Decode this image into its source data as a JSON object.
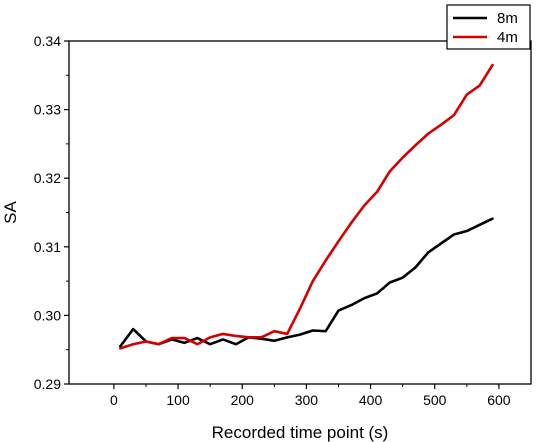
{
  "chart_data": {
    "type": "line",
    "title": "",
    "xlabel": "Recorded time point (s)",
    "ylabel": "SA",
    "xlim": [
      -70,
      650
    ],
    "ylim": [
      0.29,
      0.34
    ],
    "xticks": [
      0,
      100,
      200,
      300,
      400,
      500,
      600
    ],
    "xtick_labels": [
      "0",
      "100",
      "200",
      "300",
      "400",
      "500",
      "600"
    ],
    "yticks": [
      0.29,
      0.3,
      0.31,
      0.32,
      0.33,
      0.34
    ],
    "ytick_labels": [
      "0.29",
      "0.30",
      "0.31",
      "0.32",
      "0.33",
      "0.34"
    ],
    "grid": false,
    "legend_position": "top-right",
    "series": [
      {
        "name": "8m",
        "color": "#000000",
        "x": [
          10,
          30,
          50,
          70,
          90,
          110,
          130,
          150,
          170,
          190,
          210,
          230,
          250,
          270,
          290,
          310,
          330,
          350,
          370,
          390,
          410,
          430,
          450,
          470,
          490,
          510,
          530,
          550,
          570,
          590
        ],
        "y": [
          0.2955,
          0.298,
          0.2962,
          0.2958,
          0.2965,
          0.296,
          0.2967,
          0.2958,
          0.2965,
          0.2958,
          0.2968,
          0.2966,
          0.2963,
          0.2968,
          0.2972,
          0.2978,
          0.2977,
          0.3007,
          0.3015,
          0.3025,
          0.3032,
          0.3048,
          0.3055,
          0.307,
          0.3092,
          0.3105,
          0.3118,
          0.3123,
          0.3132,
          0.3141
        ]
      },
      {
        "name": "4m",
        "color": "#d40000",
        "x": [
          10,
          30,
          50,
          70,
          90,
          110,
          130,
          150,
          170,
          190,
          210,
          230,
          250,
          270,
          290,
          310,
          330,
          350,
          370,
          390,
          410,
          430,
          450,
          470,
          490,
          510,
          530,
          550,
          570,
          590
        ],
        "y": [
          0.2952,
          0.2958,
          0.2962,
          0.2958,
          0.2967,
          0.2967,
          0.2958,
          0.2968,
          0.2973,
          0.297,
          0.2968,
          0.2968,
          0.2977,
          0.2973,
          0.301,
          0.305,
          0.308,
          0.3108,
          0.3135,
          0.316,
          0.318,
          0.321,
          0.323,
          0.3248,
          0.3265,
          0.3278,
          0.3292,
          0.3322,
          0.3335,
          0.3365
        ]
      }
    ]
  }
}
